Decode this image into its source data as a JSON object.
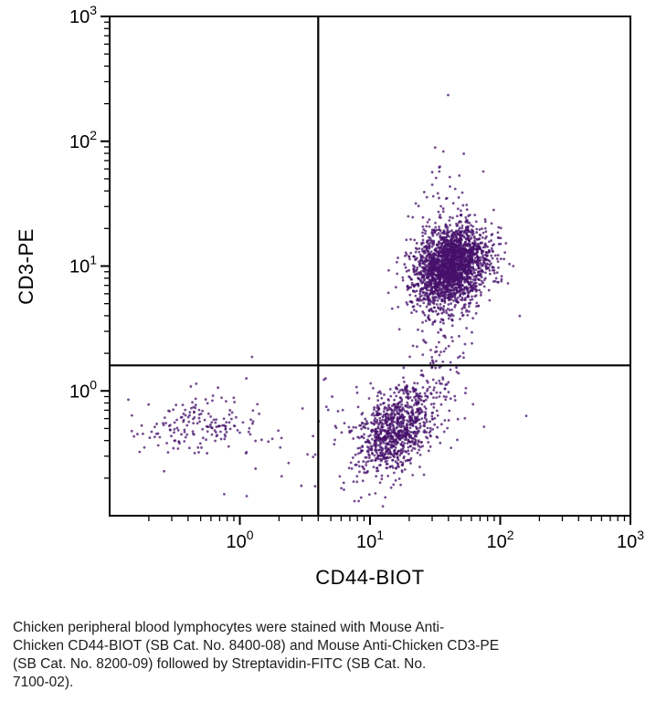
{
  "figure": {
    "background": "#ffffff"
  },
  "chart_data": {
    "type": "scatter",
    "subtype": "flow-cytometry-dot-plot",
    "title": "",
    "xlabel": "CD44-BIOT",
    "ylabel": "CD3-PE",
    "x_scale": "log",
    "y_scale": "log",
    "xlim_log10": [
      -1,
      3
    ],
    "ylim_log10": [
      -1,
      3
    ],
    "x_tick_exponents": [
      0,
      1,
      2,
      3
    ],
    "y_tick_exponents": [
      0,
      1,
      2,
      3
    ],
    "grid": false,
    "legend": false,
    "dot_color": "#45106b",
    "axis_color": "#000000",
    "quadrant_gates": {
      "x_value": 4.0,
      "y_value": 1.6
    },
    "seed": 20240408,
    "clusters": [
      {
        "name": "cd3pos-cd44pos",
        "quadrant": "upper-right",
        "n": 2300,
        "center_log10": [
          1.62,
          1.0
        ],
        "sigma_log10": [
          0.14,
          0.16
        ],
        "rho": 0.2
      },
      {
        "name": "cd3neg-cd44pos",
        "quadrant": "lower-right",
        "n": 950,
        "center_log10": [
          1.2,
          -0.32
        ],
        "sigma_log10": [
          0.15,
          0.18
        ],
        "rho": 0.45
      },
      {
        "name": "double-negative",
        "quadrant": "lower-left",
        "n": 170,
        "center_log10": [
          -0.33,
          -0.27
        ],
        "sigma_log10": [
          0.22,
          0.13
        ],
        "rho": 0.0
      },
      {
        "name": "bridge",
        "quadrant": "right",
        "n": 140,
        "center_log10": [
          1.5,
          0.3
        ],
        "sigma_log10": [
          0.14,
          0.33
        ],
        "rho": 0.2
      },
      {
        "name": "upper-tail",
        "quadrant": "upper-right",
        "n": 70,
        "center_log10": [
          1.62,
          1.4
        ],
        "sigma_log10": [
          0.16,
          0.27
        ],
        "rho": 0.0
      },
      {
        "name": "sparse-noise",
        "quadrant": "lower",
        "n": 50,
        "center_log10": [
          0.6,
          -0.35
        ],
        "sigma_log10": [
          0.5,
          0.22
        ],
        "rho": 0.0
      }
    ],
    "outliers_log10": [
      [
        1.6,
        2.37
      ],
      [
        1.72,
        1.9
      ],
      [
        1.5,
        1.95
      ],
      [
        2.1,
        1.0
      ],
      [
        2.15,
        0.6
      ],
      [
        0.05,
        0.1
      ],
      [
        2.2,
        -0.2
      ],
      [
        1.95,
        1.45
      ]
    ]
  },
  "caption": {
    "lines": [
      "Chicken peripheral blood lymphocytes were stained with Mouse Anti-",
      "Chicken CD44-BIOT (SB Cat. No. 8400-08) and Mouse Anti-Chicken CD3-PE",
      "(SB Cat. No. 8200-09) followed by Streptavidin-FITC (SB Cat. No.",
      "7100-02)."
    ]
  }
}
